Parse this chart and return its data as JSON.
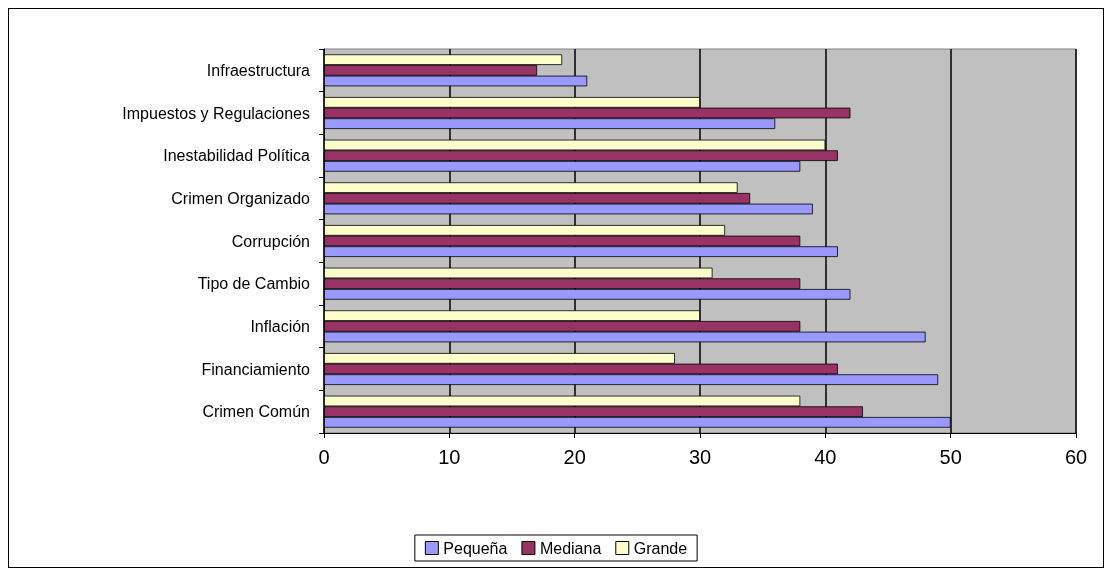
{
  "chart_data": {
    "type": "bar",
    "orientation": "horizontal",
    "categories": [
      "Infraestructura",
      "Impuestos y Regulaciones",
      "Inestabilidad Política",
      "Crimen Organizado",
      "Corrupción",
      "Tipo de Cambio",
      "Inflación",
      "Financiamiento",
      "Crimen Común"
    ],
    "series": [
      {
        "name": "Pequeña",
        "color": "#9999ff",
        "values": [
          21,
          36,
          38,
          39,
          41,
          42,
          48,
          49,
          50
        ]
      },
      {
        "name": "Mediana",
        "color": "#993366",
        "values": [
          17,
          42,
          41,
          34,
          38,
          38,
          38,
          41,
          43
        ]
      },
      {
        "name": "Grande",
        "color": "#ffffcc",
        "values": [
          19,
          30,
          40,
          33,
          32,
          31,
          30,
          28,
          38
        ]
      }
    ],
    "xlim": [
      0,
      60
    ],
    "xticks": [
      0,
      10,
      20,
      30,
      40,
      50,
      60
    ],
    "grid": "x",
    "legend": "bottom"
  }
}
